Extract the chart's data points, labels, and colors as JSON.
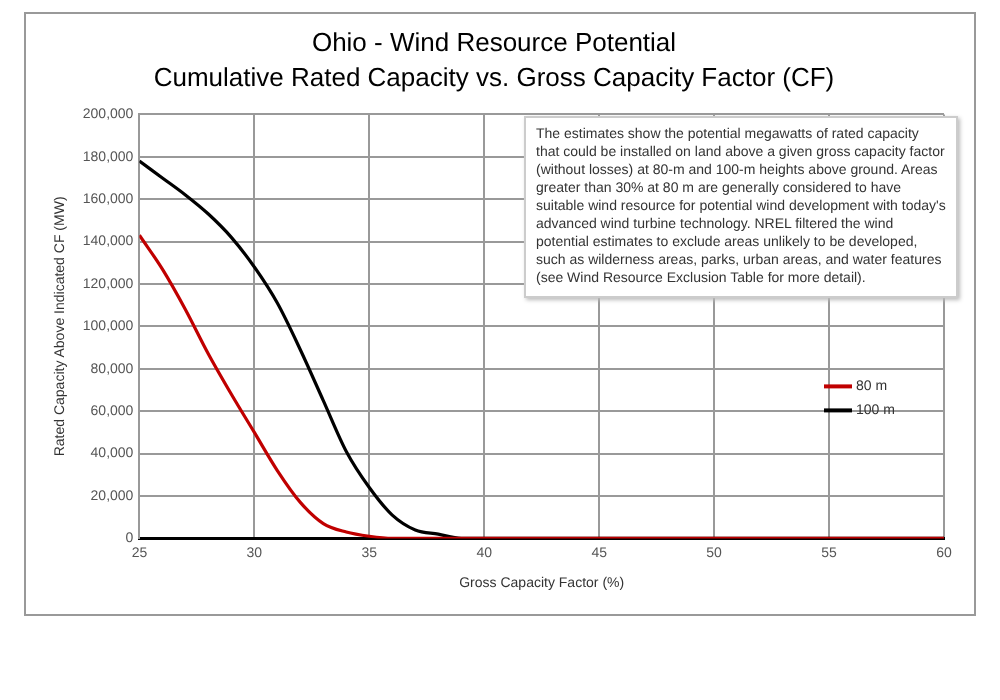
{
  "chart_data": {
    "type": "line",
    "title": "Ohio - Wind Resource Potential",
    "subtitle": "Cumulative Rated Capacity vs. Gross Capacity Factor (CF)",
    "xlabel": "Gross Capacity Factor (%)",
    "ylabel": "Rated Capacity Above Indicated CF (MW)",
    "x": [
      25,
      26,
      27,
      28,
      29,
      30,
      31,
      32,
      33,
      34,
      35,
      36,
      37,
      38,
      39,
      40,
      45,
      50,
      55,
      60
    ],
    "series": [
      {
        "name": "80 m",
        "color": "#c00000",
        "values": [
          143000,
          127000,
          108000,
          87000,
          68000,
          50000,
          32000,
          17000,
          7000,
          3000,
          1000,
          0,
          0,
          0,
          0,
          0,
          0,
          0,
          0,
          0
        ]
      },
      {
        "name": "100 m",
        "color": "#000000",
        "values": [
          178000,
          170000,
          162000,
          153000,
          142000,
          128000,
          111000,
          89000,
          65000,
          41000,
          24000,
          11000,
          4000,
          2000,
          0,
          0,
          0,
          0,
          0,
          0
        ]
      }
    ],
    "xlim": [
      25,
      60
    ],
    "xticks": [
      25,
      30,
      35,
      40,
      45,
      50,
      55,
      60
    ],
    "ylim": [
      0,
      200000
    ],
    "yticks": [
      {
        "value": 0,
        "label": "0"
      },
      {
        "value": 20000,
        "label": "20,000"
      },
      {
        "value": 40000,
        "label": "40,000"
      },
      {
        "value": 60000,
        "label": "60,000"
      },
      {
        "value": 80000,
        "label": "80,000"
      },
      {
        "value": 100000,
        "label": "100,000"
      },
      {
        "value": 120000,
        "label": "120,000"
      },
      {
        "value": 140000,
        "label": "140,000"
      },
      {
        "value": 160000,
        "label": "160,000"
      },
      {
        "value": 180000,
        "label": "180,000"
      },
      {
        "value": 200000,
        "label": "200,000"
      }
    ],
    "grid": true,
    "legend": "right",
    "marker": "none",
    "line_style": "solid",
    "annotations": [
      "The estimates show the potential megawatts of rated capacity that could be installed on land above a given gross capacity factor (without losses) at 80-m and 100-m heights above ground. Areas greater than 30% at 80 m are generally considered to have suitable wind resource for potential wind development with today's advanced wind turbine technology. NREL filtered the wind potential estimates to exclude areas unlikely to be developed, such as wilderness areas, parks, urban areas, and water features (see Wind Resource Exclusion Table for more detail)."
    ]
  }
}
